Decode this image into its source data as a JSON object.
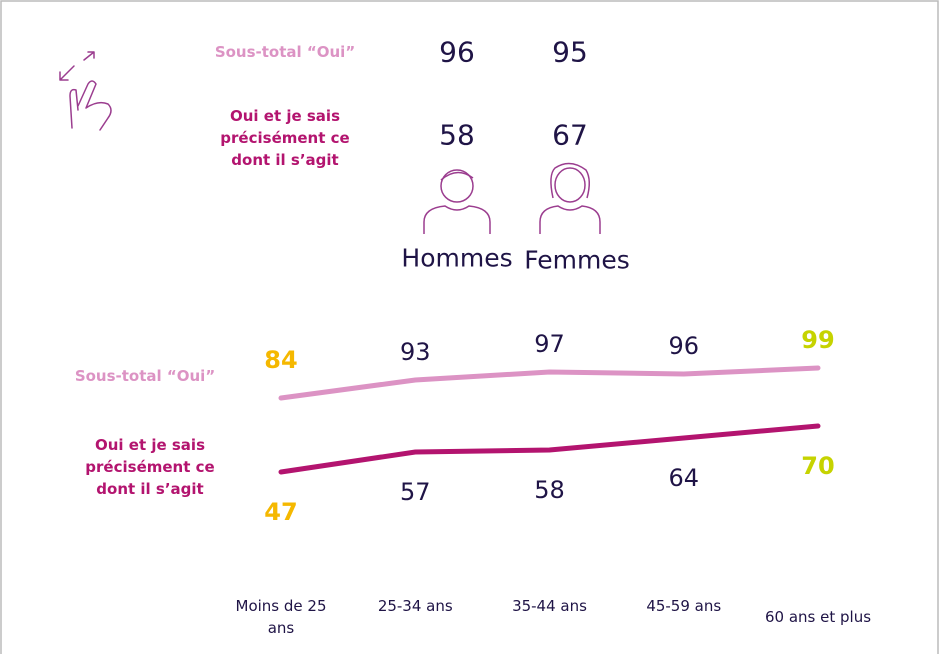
{
  "gender": {
    "row_labels": [
      "Sous-total “Oui”",
      "Oui et je sais précisément ce dont il s’agit"
    ],
    "groups": [
      {
        "name": "Hommes",
        "values": [
          96,
          58
        ]
      },
      {
        "name": "Femmes",
        "values": [
          95,
          67
        ]
      }
    ]
  },
  "chart_data": {
    "type": "line",
    "categories": [
      "Moins de 25 ans",
      "25-34 ans",
      "35-44 ans",
      "45-59 ans",
      "60 ans et plus"
    ],
    "series": [
      {
        "name": "Sous-total “Oui”",
        "color": "#dc93c4",
        "values": [
          84,
          93,
          97,
          96,
          99
        ]
      },
      {
        "name": "Oui et je sais précisément ce dont il s’agit",
        "color": "#b3146f",
        "values": [
          47,
          57,
          58,
          64,
          70
        ]
      }
    ],
    "ylim": [
      40,
      105
    ]
  }
}
